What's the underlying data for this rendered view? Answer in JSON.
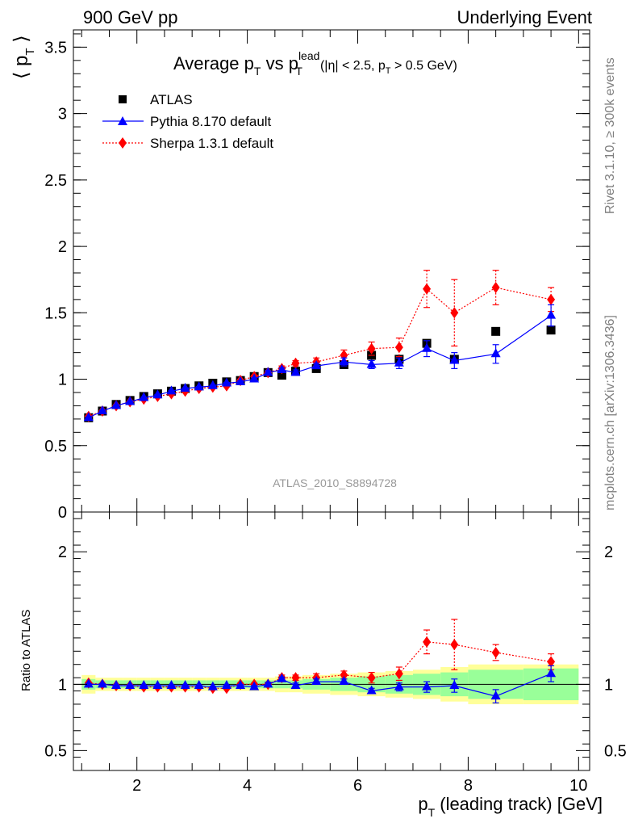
{
  "header": {
    "left": "900 GeV pp",
    "right": "Underlying Event"
  },
  "side_labels": {
    "rivet": "Rivet 3.1.10, ≥ 300k events",
    "mcplots": "mcplots.cern.ch [arXiv:1306.3436]"
  },
  "chart_data": [
    {
      "type": "scatter",
      "title": {
        "main": "Average p",
        "sub1": "T",
        "vs": " vs p",
        "sup": "lead",
        "sub2": "T",
        "cut": "(|η| < 2.5, p",
        "cut_sub": "T",
        "cut_end": " > 0.5 GeV)"
      },
      "ylabel": {
        "text": "⟨ p",
        "sub": "T",
        "end": " ⟩"
      },
      "xlim": [
        0.85,
        10.2
      ],
      "ylim": [
        0,
        3.63
      ],
      "yticks": [
        {
          "v": 0,
          "label": "0"
        },
        {
          "v": 0.5,
          "label": "0.5"
        },
        {
          "v": 1,
          "label": "1"
        },
        {
          "v": 1.5,
          "label": "1.5"
        },
        {
          "v": 2,
          "label": "2"
        },
        {
          "v": 2.5,
          "label": "2.5"
        },
        {
          "v": 3,
          "label": "3"
        },
        {
          "v": 3.5,
          "label": "3.5"
        }
      ],
      "watermark": "ATLAS_2010_S8894728",
      "legend_position": "top-left",
      "series": [
        {
          "name": "ATLAS",
          "color": "#000000",
          "marker": "square",
          "x": [
            1.125,
            1.375,
            1.625,
            1.875,
            2.125,
            2.375,
            2.625,
            2.875,
            3.125,
            3.375,
            3.625,
            3.875,
            4.125,
            4.375,
            4.625,
            4.875,
            5.25,
            5.75,
            6.25,
            6.75,
            7.25,
            7.75,
            8.5,
            9.5
          ],
          "y": [
            0.71,
            0.76,
            0.81,
            0.84,
            0.87,
            0.89,
            0.91,
            0.93,
            0.95,
            0.97,
            0.98,
            0.99,
            1.02,
            1.05,
            1.03,
            1.06,
            1.08,
            1.11,
            1.18,
            1.15,
            1.27,
            1.15,
            1.36,
            1.37
          ]
        },
        {
          "name": "Pythia 8.170 default",
          "color": "#0000ff",
          "marker": "triangle",
          "x": [
            1.125,
            1.375,
            1.625,
            1.875,
            2.125,
            2.375,
            2.625,
            2.875,
            3.125,
            3.375,
            3.625,
            3.875,
            4.125,
            4.375,
            4.625,
            4.875,
            5.25,
            5.75,
            6.25,
            6.75,
            7.25,
            7.75,
            8.5,
            9.5
          ],
          "y": [
            0.71,
            0.76,
            0.8,
            0.83,
            0.86,
            0.88,
            0.91,
            0.93,
            0.94,
            0.95,
            0.97,
            0.98,
            1.0,
            1.05,
            1.07,
            1.05,
            1.1,
            1.13,
            1.11,
            1.12,
            1.23,
            1.14,
            1.19,
            1.48
          ],
          "err": [
            0.005,
            0.005,
            0.005,
            0.005,
            0.005,
            0.005,
            0.005,
            0.005,
            0.005,
            0.005,
            0.005,
            0.008,
            0.01,
            0.015,
            0.015,
            0.02,
            0.02,
            0.03,
            0.03,
            0.04,
            0.06,
            0.06,
            0.07,
            0.08
          ]
        },
        {
          "name": "Sherpa 1.3.1 default",
          "color": "#ff0000",
          "marker": "diamond",
          "x": [
            1.125,
            1.375,
            1.625,
            1.875,
            2.125,
            2.375,
            2.625,
            2.875,
            3.125,
            3.375,
            3.625,
            3.875,
            4.125,
            4.375,
            4.625,
            4.875,
            5.25,
            5.75,
            6.25,
            6.75,
            7.25,
            7.75,
            8.5,
            9.5
          ],
          "y": [
            0.72,
            0.76,
            0.8,
            0.83,
            0.85,
            0.87,
            0.89,
            0.91,
            0.93,
            0.94,
            0.95,
            0.99,
            1.02,
            1.05,
            1.08,
            1.12,
            1.13,
            1.18,
            1.23,
            1.24,
            1.68,
            1.5,
            1.69,
            1.6
          ],
          "err": [
            0.005,
            0.005,
            0.005,
            0.005,
            0.005,
            0.005,
            0.005,
            0.005,
            0.005,
            0.005,
            0.005,
            0.01,
            0.01,
            0.015,
            0.02,
            0.02,
            0.03,
            0.04,
            0.05,
            0.07,
            0.14,
            0.25,
            0.13,
            0.09
          ]
        }
      ]
    },
    {
      "type": "scatter",
      "ylabel": "Ratio to ATLAS",
      "xlabel": {
        "text": "p",
        "sub": "T",
        "end": " (leading track) [GeV]"
      },
      "xlim": [
        0.85,
        10.2
      ],
      "ylim": [
        0.35,
        2.3
      ],
      "xticks": [
        {
          "v": 2,
          "label": "2"
        },
        {
          "v": 4,
          "label": "4"
        },
        {
          "v": 6,
          "label": "6"
        },
        {
          "v": 8,
          "label": "8"
        },
        {
          "v": 10,
          "label": "10"
        }
      ],
      "yticks": [
        {
          "v": 0.5,
          "label": "0.5"
        },
        {
          "v": 1,
          "label": "1"
        },
        {
          "v": 2,
          "label": "2"
        }
      ],
      "bands": {
        "edges": [
          1.0,
          1.25,
          1.5,
          1.75,
          2.0,
          2.25,
          2.5,
          2.75,
          3.0,
          3.25,
          3.5,
          3.75,
          4.0,
          4.25,
          4.5,
          4.75,
          5.0,
          5.5,
          6.0,
          6.5,
          7.0,
          7.5,
          8.0,
          9.0,
          10.0
        ],
        "stat": [
          0.04,
          0.03,
          0.03,
          0.03,
          0.03,
          0.03,
          0.03,
          0.03,
          0.03,
          0.03,
          0.03,
          0.03,
          0.03,
          0.03,
          0.03,
          0.03,
          0.04,
          0.05,
          0.06,
          0.07,
          0.08,
          0.09,
          0.11,
          0.12
        ],
        "total": [
          0.07,
          0.05,
          0.05,
          0.05,
          0.05,
          0.05,
          0.05,
          0.05,
          0.05,
          0.05,
          0.05,
          0.05,
          0.05,
          0.05,
          0.06,
          0.06,
          0.07,
          0.08,
          0.09,
          0.1,
          0.11,
          0.13,
          0.15,
          0.15
        ],
        "stat_color": "#99ff99",
        "total_color": "#ffff99"
      },
      "series": [
        {
          "name": "Pythia 8.170 default",
          "color": "#0000ff",
          "marker": "triangle",
          "x": [
            1.125,
            1.375,
            1.625,
            1.875,
            2.125,
            2.375,
            2.625,
            2.875,
            3.125,
            3.375,
            3.625,
            3.875,
            4.125,
            4.375,
            4.625,
            4.875,
            5.25,
            5.75,
            6.25,
            6.75,
            7.25,
            7.75,
            8.5,
            9.5
          ],
          "y": [
            1.0,
            1.0,
            0.99,
            0.99,
            0.99,
            0.99,
            0.99,
            0.99,
            0.99,
            0.98,
            0.99,
            0.99,
            0.98,
            1.0,
            1.04,
            0.99,
            1.02,
            1.02,
            0.95,
            0.98,
            0.98,
            0.99,
            0.91,
            1.08
          ],
          "err": [
            0.005,
            0.005,
            0.005,
            0.005,
            0.005,
            0.005,
            0.005,
            0.005,
            0.005,
            0.005,
            0.005,
            0.008,
            0.01,
            0.015,
            0.015,
            0.02,
            0.02,
            0.02,
            0.02,
            0.03,
            0.04,
            0.05,
            0.05,
            0.06
          ]
        },
        {
          "name": "Sherpa 1.3.1 default",
          "color": "#ff0000",
          "marker": "diamond",
          "x": [
            1.125,
            1.375,
            1.625,
            1.875,
            2.125,
            2.375,
            2.625,
            2.875,
            3.125,
            3.375,
            3.625,
            3.875,
            4.125,
            4.375,
            4.625,
            4.875,
            5.25,
            5.75,
            6.25,
            6.75,
            7.25,
            7.75,
            8.5,
            9.5
          ],
          "y": [
            1.01,
            1.0,
            0.99,
            0.99,
            0.98,
            0.98,
            0.98,
            0.98,
            0.98,
            0.97,
            0.97,
            1.0,
            1.0,
            1.0,
            1.05,
            1.05,
            1.05,
            1.07,
            1.05,
            1.08,
            1.32,
            1.3,
            1.24,
            1.17
          ],
          "err": [
            0.005,
            0.005,
            0.005,
            0.005,
            0.005,
            0.005,
            0.005,
            0.005,
            0.005,
            0.005,
            0.005,
            0.01,
            0.01,
            0.015,
            0.02,
            0.02,
            0.03,
            0.03,
            0.04,
            0.05,
            0.09,
            0.19,
            0.06,
            0.06
          ]
        }
      ]
    }
  ]
}
